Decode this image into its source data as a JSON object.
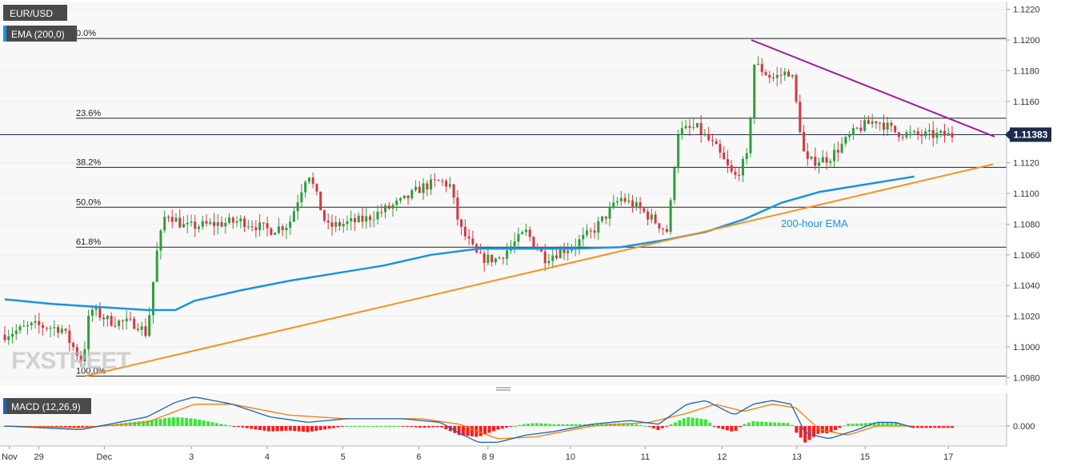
{
  "symbol_label": "EUR/USD",
  "ema_label": "EMA (200,0)",
  "macd_label": "MACD (12,26,9)",
  "ema_annotation": "200-hour EMA",
  "watermark": "FXSTREET",
  "current_price": "1.11383",
  "colors": {
    "background": "#ffffff",
    "plot_bg": "#f8f8f8",
    "up": "#2e9e3a",
    "down": "#d9363e",
    "ema": "#1a93e0",
    "trendline_support": "#f7931e",
    "trendline_resistance": "#9b1aa0",
    "macd_line": "#1565c0",
    "signal_line": "#f57c00",
    "hist_pos": "#39e639",
    "hist_neg": "#ff1a1a",
    "price_tag": "#1c2c4c"
  },
  "chart_data": [
    {
      "type": "candlestick",
      "ylim": [
        1.0975,
        1.1225
      ],
      "y_ticks": [
        "1.1220",
        "1.1200",
        "1.1180",
        "1.1160",
        "1.1140",
        "1.1120",
        "1.1100",
        "1.1080",
        "1.1060",
        "1.1040",
        "1.1020",
        "1.1000",
        "1.0980"
      ],
      "x_ticks": [
        "Nov",
        "29",
        "Dec",
        "3",
        "4",
        "5",
        "6",
        "8 9",
        "10",
        "11",
        "12",
        "13",
        "15",
        "17"
      ],
      "fibonacci": [
        {
          "label": "0.0%",
          "price": 1.1201
        },
        {
          "label": "23.6%",
          "price": 1.1149
        },
        {
          "label": "38.2%",
          "price": 1.1117
        },
        {
          "label": "50.0%",
          "price": 1.1091
        },
        {
          "label": "61.8%",
          "price": 1.1065
        },
        {
          "label": "100.0%",
          "price": 1.0981
        }
      ],
      "support_trendline": [
        {
          "x": 0.085,
          "price": 1.0981
        },
        {
          "x": 1.0,
          "price": 1.1119
        }
      ],
      "resistance_trendline": [
        {
          "x": 0.788,
          "price": 1.12
        },
        {
          "x": 1.0,
          "price": 1.1137
        }
      ],
      "ema_series": [
        [
          0,
          1.1031
        ],
        [
          0.05,
          1.1028
        ],
        [
          0.1,
          1.1026
        ],
        [
          0.15,
          1.1024
        ],
        [
          0.18,
          1.1024
        ],
        [
          0.2,
          1.103
        ],
        [
          0.25,
          1.1037
        ],
        [
          0.3,
          1.1043
        ],
        [
          0.35,
          1.1048
        ],
        [
          0.4,
          1.1053
        ],
        [
          0.45,
          1.106
        ],
        [
          0.5,
          1.1064
        ],
        [
          0.55,
          1.1064
        ],
        [
          0.6,
          1.1064
        ],
        [
          0.65,
          1.1065
        ],
        [
          0.7,
          1.107
        ],
        [
          0.74,
          1.1075
        ],
        [
          0.78,
          1.1083
        ],
        [
          0.82,
          1.1094
        ],
        [
          0.86,
          1.1101
        ],
        [
          0.9,
          1.1105
        ],
        [
          0.94,
          1.1109
        ],
        [
          0.96,
          1.1111
        ]
      ],
      "price_keyframes": [
        [
          0,
          1.1008
        ],
        [
          0.03,
          1.1014
        ],
        [
          0.06,
          1.1012
        ],
        [
          0.082,
          1.099
        ],
        [
          0.09,
          1.1025
        ],
        [
          0.11,
          1.1017
        ],
        [
          0.14,
          1.1015
        ],
        [
          0.15,
          1.1008
        ],
        [
          0.16,
          1.106
        ],
        [
          0.17,
          1.1088
        ],
        [
          0.19,
          1.1078
        ],
        [
          0.22,
          1.108
        ],
        [
          0.25,
          1.1082
        ],
        [
          0.28,
          1.1076
        ],
        [
          0.3,
          1.108
        ],
        [
          0.32,
          1.1115
        ],
        [
          0.34,
          1.1078
        ],
        [
          0.38,
          1.1083
        ],
        [
          0.42,
          1.1095
        ],
        [
          0.44,
          1.1104
        ],
        [
          0.46,
          1.1108
        ],
        [
          0.47,
          1.1105
        ],
        [
          0.48,
          1.1078
        ],
        [
          0.5,
          1.1058
        ],
        [
          0.52,
          1.1057
        ],
        [
          0.55,
          1.1075
        ],
        [
          0.57,
          1.1058
        ],
        [
          0.6,
          1.1066
        ],
        [
          0.62,
          1.1075
        ],
        [
          0.65,
          1.1097
        ],
        [
          0.67,
          1.109
        ],
        [
          0.7,
          1.1075
        ],
        [
          0.71,
          1.114
        ],
        [
          0.73,
          1.1143
        ],
        [
          0.75,
          1.113
        ],
        [
          0.77,
          1.111
        ],
        [
          0.785,
          1.1125
        ],
        [
          0.79,
          1.1185
        ],
        [
          0.81,
          1.1175
        ],
        [
          0.83,
          1.118
        ],
        [
          0.845,
          1.112
        ],
        [
          0.87,
          1.1123
        ],
        [
          0.9,
          1.1142
        ],
        [
          0.92,
          1.1148
        ],
        [
          0.94,
          1.114
        ],
        [
          0.96,
          1.1138
        ]
      ]
    },
    {
      "type": "macd",
      "y_ticks": [
        "0.000"
      ],
      "ylim": [
        -0.0011,
        0.0018
      ],
      "macd_keyframes": [
        [
          0,
          0.0
        ],
        [
          0.08,
          -0.0002
        ],
        [
          0.15,
          0.0005
        ],
        [
          0.18,
          0.0013
        ],
        [
          0.2,
          0.0016
        ],
        [
          0.24,
          0.0012
        ],
        [
          0.28,
          0.0005
        ],
        [
          0.32,
          0.0002
        ],
        [
          0.36,
          0.0004
        ],
        [
          0.42,
          0.0004
        ],
        [
          0.46,
          0.0002
        ],
        [
          0.48,
          -0.0004
        ],
        [
          0.5,
          -0.0009
        ],
        [
          0.52,
          -0.0009
        ],
        [
          0.55,
          -0.0005
        ],
        [
          0.58,
          -0.0003
        ],
        [
          0.62,
          0.0001
        ],
        [
          0.66,
          0.0003
        ],
        [
          0.69,
          0.0001
        ],
        [
          0.72,
          0.0012
        ],
        [
          0.74,
          0.0014
        ],
        [
          0.77,
          0.0006
        ],
        [
          0.79,
          0.0012
        ],
        [
          0.81,
          0.0014
        ],
        [
          0.83,
          0.0012
        ],
        [
          0.845,
          -0.0004
        ],
        [
          0.87,
          -0.0007
        ],
        [
          0.9,
          -0.0002
        ],
        [
          0.92,
          0.0002
        ],
        [
          0.94,
          0.0002
        ],
        [
          0.96,
          -0.0001
        ]
      ],
      "signal_keyframes": [
        [
          0,
          0.0
        ],
        [
          0.08,
          -0.0001
        ],
        [
          0.15,
          0.0002
        ],
        [
          0.2,
          0.0012
        ],
        [
          0.24,
          0.0012
        ],
        [
          0.3,
          0.0006
        ],
        [
          0.36,
          0.0004
        ],
        [
          0.44,
          0.0004
        ],
        [
          0.48,
          0.0001
        ],
        [
          0.52,
          -0.0007
        ],
        [
          0.56,
          -0.0006
        ],
        [
          0.62,
          0.0
        ],
        [
          0.68,
          0.0002
        ],
        [
          0.72,
          0.0007
        ],
        [
          0.75,
          0.0012
        ],
        [
          0.78,
          0.0008
        ],
        [
          0.81,
          0.0012
        ],
        [
          0.835,
          0.001
        ],
        [
          0.86,
          -0.0002
        ],
        [
          0.89,
          -0.0005
        ],
        [
          0.92,
          0.0
        ],
        [
          0.96,
          0.0
        ]
      ]
    }
  ]
}
